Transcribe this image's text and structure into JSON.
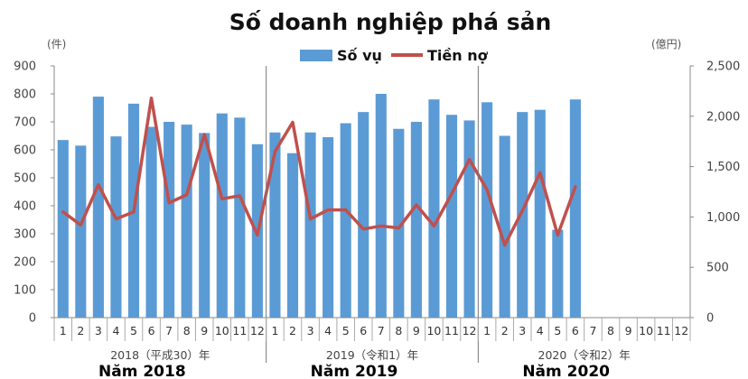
{
  "chart_data": {
    "type": "bar",
    "title": "Số doanh nghiệp phá sản",
    "y_left_unit": "(件)",
    "y_right_unit": "(億円)",
    "ylim_left": [
      0,
      900
    ],
    "ylim_right": [
      0,
      2500
    ],
    "yticks_left": [
      "0",
      "100",
      "200",
      "300",
      "400",
      "500",
      "600",
      "700",
      "800",
      "900"
    ],
    "yticks_right": [
      "0",
      "500",
      "1,000",
      "1,500",
      "2,000",
      "2,500"
    ],
    "grid": false,
    "legend_position": "top-center",
    "month_labels": [
      "1",
      "2",
      "3",
      "4",
      "5",
      "6",
      "7",
      "8",
      "9",
      "10",
      "11",
      "12",
      "1",
      "2",
      "3",
      "4",
      "5",
      "6",
      "7",
      "8",
      "9",
      "10",
      "11",
      "12",
      "1",
      "2",
      "3",
      "4",
      "5",
      "6",
      "7",
      "8",
      "9",
      "10",
      "11",
      "12"
    ],
    "groups": [
      {
        "label": "2018（平成30）年",
        "vn_label": "Năm 2018"
      },
      {
        "label": "2019（令和1）年",
        "vn_label": "Năm 2019"
      },
      {
        "label": "2020（令和2）年",
        "vn_label": "Năm 2020"
      }
    ],
    "series": [
      {
        "name": "Số vụ",
        "type": "bar",
        "axis": "left",
        "color": "#5b9bd5",
        "values": [
          635,
          615,
          790,
          648,
          765,
          682,
          700,
          690,
          660,
          730,
          715,
          620,
          662,
          588,
          662,
          645,
          695,
          735,
          800,
          675,
          700,
          780,
          725,
          705,
          770,
          650,
          735,
          743,
          314,
          780,
          null,
          null,
          null,
          null,
          null,
          null
        ]
      },
      {
        "name": "Tiền nợ",
        "type": "line",
        "axis": "right",
        "color": "#c0504d",
        "values": [
          1050,
          920,
          1320,
          980,
          1050,
          2180,
          1140,
          1220,
          1820,
          1180,
          1210,
          820,
          1650,
          1940,
          980,
          1070,
          1070,
          880,
          910,
          890,
          1120,
          910,
          1230,
          1570,
          1270,
          720,
          1060,
          1440,
          820,
          1300,
          null,
          null,
          null,
          null,
          null,
          null
        ]
      }
    ]
  }
}
